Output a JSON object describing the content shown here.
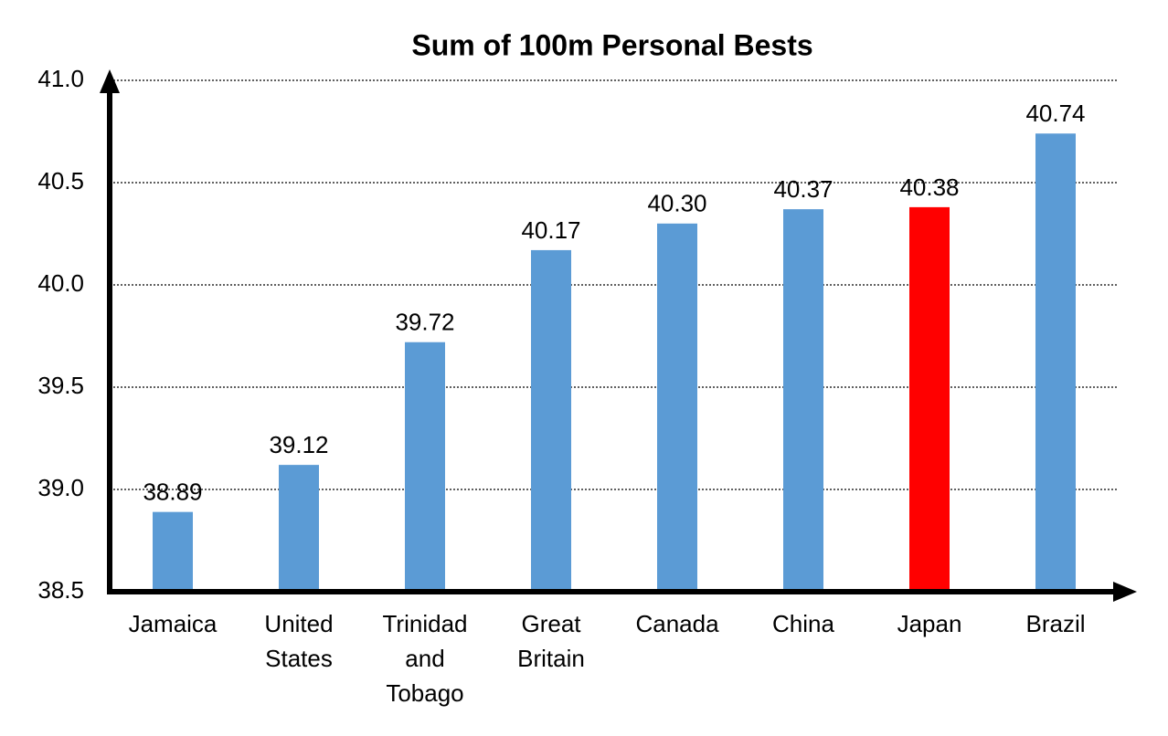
{
  "chart_data": {
    "type": "bar",
    "title": "Sum of 100m Personal Bests",
    "categories": [
      "Jamaica",
      "United States",
      "Trinidad and Tobago",
      "Great Britain",
      "Canada",
      "China",
      "Japan",
      "Brazil"
    ],
    "values": [
      38.89,
      39.12,
      39.72,
      40.17,
      40.3,
      40.37,
      40.38,
      40.74
    ],
    "value_labels": [
      "38.89",
      "39.12",
      "39.72",
      "40.17",
      "40.30",
      "40.37",
      "40.38",
      "40.74"
    ],
    "colors": [
      "#5b9bd5",
      "#5b9bd5",
      "#5b9bd5",
      "#5b9bd5",
      "#5b9bd5",
      "#5b9bd5",
      "#ff0000",
      "#5b9bd5"
    ],
    "ylim": [
      38.5,
      41
    ],
    "yticks": [
      {
        "value": 38.5,
        "label": "38.5"
      },
      {
        "value": 39,
        "label": "39.0"
      },
      {
        "value": 39.5,
        "label": "39.5"
      },
      {
        "value": 40,
        "label": "40.0"
      },
      {
        "value": 40.5,
        "label": "40.5"
      },
      {
        "value": 41,
        "label": "41.0"
      }
    ],
    "grid": true
  }
}
